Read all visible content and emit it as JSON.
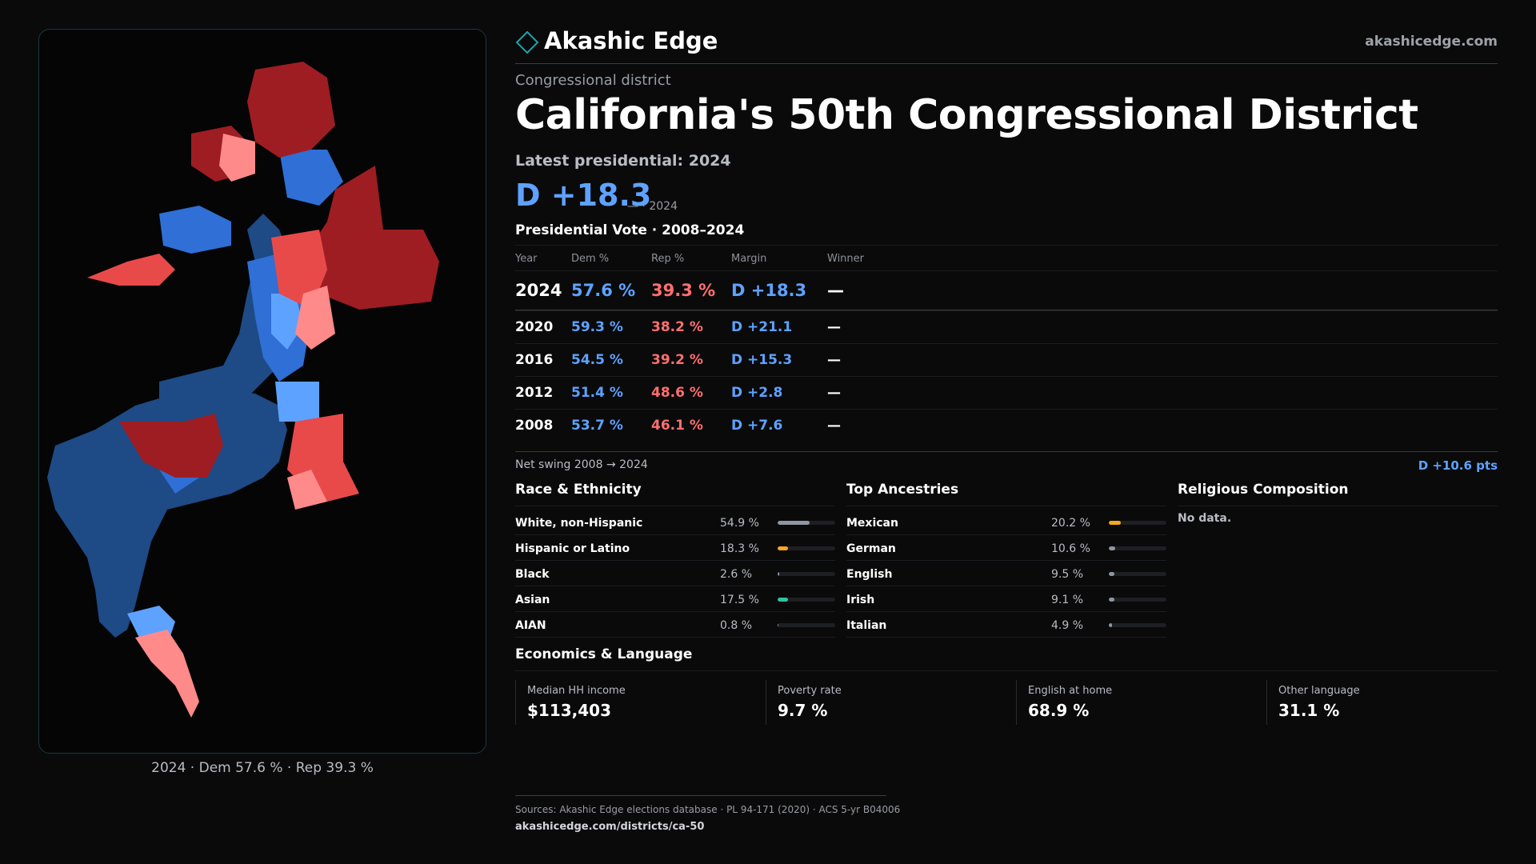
{
  "brand": {
    "name": "Akashic Edge",
    "url": "akashicedge.com"
  },
  "header": {
    "kicker": "Congressional district",
    "title": "California's 50th Congressional District",
    "latest_label": "Latest presidential: 2024",
    "margin": "D +18.3",
    "margin_sub": "— · 2024"
  },
  "vote": {
    "title": "Presidential Vote · 2008–2024",
    "headers": {
      "year": "Year",
      "dem": "Dem %",
      "rep": "Rep %",
      "margin": "Margin",
      "winner": "Winner"
    },
    "rows": [
      {
        "year": "2024",
        "dem": "57.6 %",
        "rep": "39.3 %",
        "margin": "D +18.3",
        "winner": "—"
      },
      {
        "year": "2020",
        "dem": "59.3 %",
        "rep": "38.2 %",
        "margin": "D +21.1",
        "winner": "—"
      },
      {
        "year": "2016",
        "dem": "54.5 %",
        "rep": "39.2 %",
        "margin": "D +15.3",
        "winner": "—"
      },
      {
        "year": "2012",
        "dem": "51.4 %",
        "rep": "48.6 %",
        "margin": "D +2.8",
        "winner": "—"
      },
      {
        "year": "2008",
        "dem": "53.7 %",
        "rep": "46.1 %",
        "margin": "D +7.6",
        "winner": "—"
      }
    ],
    "swing_label": "Net swing 2008 → 2024",
    "swing_value": "D +10.6 pts"
  },
  "race": {
    "title": "Race & Ethnicity",
    "items": [
      {
        "label": "White, non-Hispanic",
        "value": "54.9 %",
        "share": 0.549,
        "color": "#8f96a3"
      },
      {
        "label": "Hispanic or Latino",
        "value": "18.3 %",
        "share": 0.183,
        "color": "#f5a623"
      },
      {
        "label": "Black",
        "value": "2.6 %",
        "share": 0.026,
        "color": "#8f96a3"
      },
      {
        "label": "Asian",
        "value": "17.5 %",
        "share": 0.175,
        "color": "#2ec4a0"
      },
      {
        "label": "AIAN",
        "value": "0.8 %",
        "share": 0.008,
        "color": "#8f96a3"
      }
    ]
  },
  "ancestry": {
    "title": "Top Ancestries",
    "items": [
      {
        "label": "Mexican",
        "value": "20.2 %",
        "share": 0.202,
        "color": "#f5a623"
      },
      {
        "label": "German",
        "value": "10.6 %",
        "share": 0.106,
        "color": "#8f96a3"
      },
      {
        "label": "English",
        "value": "9.5 %",
        "share": 0.095,
        "color": "#8f96a3"
      },
      {
        "label": "Irish",
        "value": "9.1 %",
        "share": 0.091,
        "color": "#8f96a3"
      },
      {
        "label": "Italian",
        "value": "4.9 %",
        "share": 0.049,
        "color": "#8f96a3"
      }
    ]
  },
  "religion": {
    "title": "Religious Composition",
    "empty": "No data."
  },
  "econ": {
    "title": "Economics & Language",
    "cells": [
      {
        "label": "Median HH income",
        "value": "$113,403"
      },
      {
        "label": "Poverty rate",
        "value": "9.7 %"
      },
      {
        "label": "English at home",
        "value": "68.9 %"
      },
      {
        "label": "Other language",
        "value": "31.1 %"
      }
    ]
  },
  "map": {
    "caption": "2024 · Dem 57.6 % · Rep 39.3 %"
  },
  "footer": {
    "sources": "Sources: Akashic Edge elections database · PL 94-171 (2020) · ACS 5-yr B04006",
    "url": "akashicedge.com/districts/ca-50"
  },
  "colors": {
    "dem_dark": "#1e4a85",
    "dem_mid": "#2f6fd6",
    "dem_light": "#5ea2ff",
    "rep_light": "#ff8a8a",
    "rep_mid": "#e84a4a",
    "rep_dark": "#9e1d22",
    "accent": "#1fa3a8"
  }
}
